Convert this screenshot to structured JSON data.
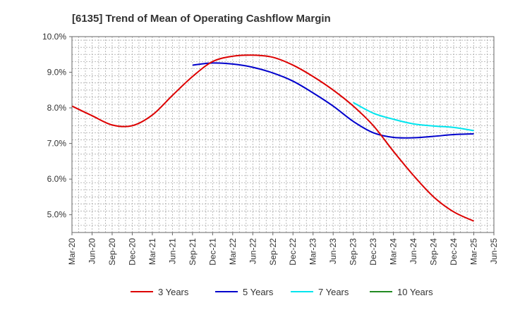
{
  "chart_data": {
    "type": "line",
    "title": "[6135]  Trend of Mean of Operating Cashflow Margin",
    "xlabel": "",
    "ylabel": "",
    "ylim": [
      4.5,
      10.0
    ],
    "y_ticks": [
      5.0,
      6.0,
      7.0,
      8.0,
      9.0,
      10.0
    ],
    "y_tick_labels": [
      "5.0%",
      "6.0%",
      "7.0%",
      "8.0%",
      "9.0%",
      "10.0%"
    ],
    "x_tick_labels": [
      "Mar-20",
      "Jun-20",
      "Sep-20",
      "Dec-20",
      "Mar-21",
      "Jun-21",
      "Sep-21",
      "Dec-21",
      "Mar-22",
      "Jun-22",
      "Sep-22",
      "Dec-22",
      "Mar-23",
      "Jun-23",
      "Sep-23",
      "Dec-23",
      "Mar-24",
      "Jun-24",
      "Sep-24",
      "Dec-24",
      "Mar-25",
      "Jun-25"
    ],
    "grid": true,
    "legend_position": "bottom",
    "series": [
      {
        "name": "3 Years",
        "color": "#dd0000",
        "start_index": 0,
        "values": [
          8.05,
          7.78,
          7.52,
          7.5,
          7.8,
          8.35,
          8.88,
          9.3,
          9.45,
          9.48,
          9.42,
          9.2,
          8.88,
          8.5,
          8.05,
          7.5,
          6.78,
          6.1,
          5.5,
          5.08,
          4.82
        ]
      },
      {
        "name": "5 Years",
        "color": "#0000cc",
        "start_index": 6,
        "values": [
          9.2,
          9.26,
          9.23,
          9.14,
          8.98,
          8.75,
          8.42,
          8.05,
          7.62,
          7.3,
          7.17,
          7.16,
          7.2,
          7.25,
          7.27
        ]
      },
      {
        "name": "7 Years",
        "color": "#00e5ee",
        "start_index": 14,
        "values": [
          8.15,
          7.85,
          7.68,
          7.55,
          7.49,
          7.45,
          7.36
        ]
      },
      {
        "name": "10 Years",
        "color": "#228b22",
        "start_index": 0,
        "values": []
      }
    ]
  }
}
